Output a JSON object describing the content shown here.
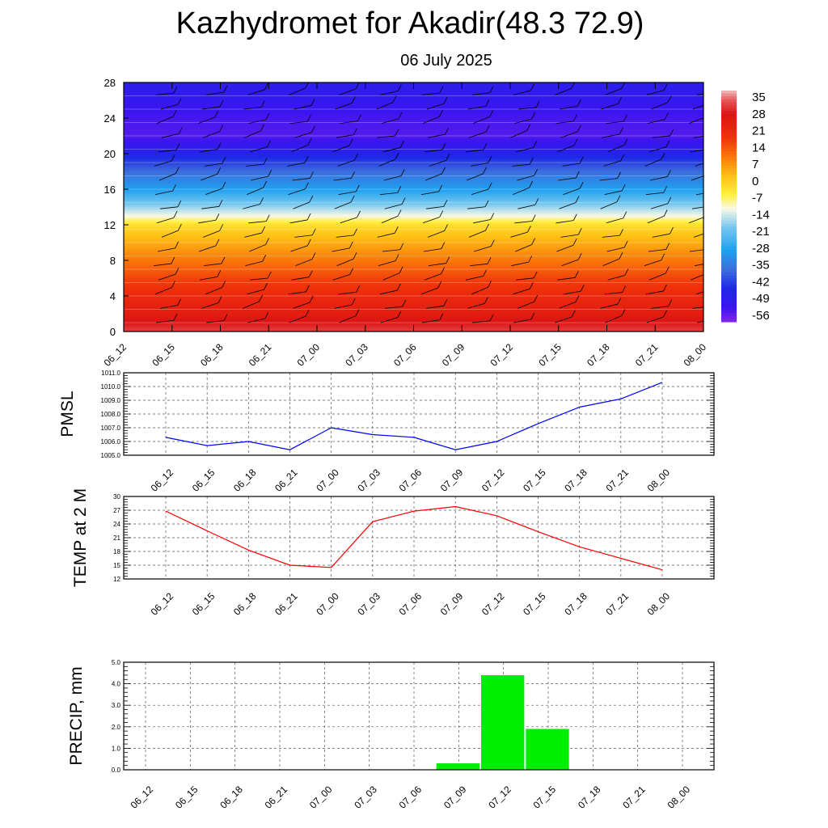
{
  "header": {
    "title": "Kazhydromet for Akadir(48.3 72.9)",
    "subtitle": "06 July 2025"
  },
  "chart_data": [
    {
      "type": "heatmap",
      "title": "",
      "time_labels": [
        "06_12",
        "06_15",
        "06_18",
        "06_21",
        "07_00",
        "07_03",
        "07_06",
        "07_09",
        "07_12",
        "07_15",
        "07_18",
        "07_21",
        "08_00"
      ],
      "ylim": [
        0,
        28
      ],
      "yticks": [
        "0",
        "4",
        "8",
        "12",
        "16",
        "20",
        "24",
        "28"
      ],
      "colorbar_labels": [
        "35",
        "28",
        "21",
        "14",
        "7",
        "0",
        "-7",
        "-14",
        "-21",
        "-28",
        "-35",
        "-42",
        "-49",
        "-56"
      ],
      "colorbar_range": [
        -60,
        38
      ],
      "temperature_profile_by_height": [
        {
          "h": 0,
          "t": 32
        },
        {
          "h": 2,
          "t": 25
        },
        {
          "h": 4,
          "t": 21
        },
        {
          "h": 6,
          "t": 16
        },
        {
          "h": 8,
          "t": 10
        },
        {
          "h": 10,
          "t": 4
        },
        {
          "h": 12,
          "t": -3
        },
        {
          "h": 13,
          "t": -12
        },
        {
          "h": 14,
          "t": -18
        },
        {
          "h": 16,
          "t": -30
        },
        {
          "h": 18,
          "t": -38
        },
        {
          "h": 20,
          "t": -48
        },
        {
          "h": 22,
          "t": -56
        },
        {
          "h": 24,
          "t": -55
        },
        {
          "h": 26,
          "t": -52
        },
        {
          "h": 28,
          "t": -50
        }
      ],
      "overlay": "wind barbs"
    },
    {
      "type": "line",
      "ylabel": "PMSL",
      "x": [
        "06_12",
        "06_15",
        "06_18",
        "06_21",
        "07_00",
        "07_03",
        "07_06",
        "07_09",
        "07_12",
        "07_15",
        "07_18",
        "07_21",
        "08_00"
      ],
      "values": [
        1006.3,
        1005.7,
        1006.0,
        1005.4,
        1007.0,
        1006.5,
        1006.3,
        1005.4,
        1006.0,
        1007.3,
        1008.5,
        1009.1,
        1010.3
      ],
      "ylim": [
        1005.0,
        1011.0
      ],
      "yticks": [
        "1005.0",
        "1006.0",
        "1007.0",
        "1008.0",
        "1009.0",
        "1010.0",
        "1011.0"
      ],
      "color": "#0000ff",
      "grid": true
    },
    {
      "type": "line",
      "ylabel": "TEMP at 2 M",
      "x": [
        "06_12",
        "06_15",
        "06_18",
        "06_21",
        "07_00",
        "07_03",
        "07_06",
        "07_09",
        "07_12",
        "07_15",
        "07_18",
        "07_21",
        "08_00"
      ],
      "values": [
        26.8,
        22.5,
        18.3,
        15.0,
        14.5,
        24.5,
        26.8,
        27.8,
        25.8,
        22.3,
        19.0,
        16.5,
        14.0
      ],
      "ylim": [
        12,
        30
      ],
      "yticks": [
        "12",
        "15",
        "18",
        "21",
        "24",
        "27",
        "30"
      ],
      "color": "#ff0000",
      "grid": true
    },
    {
      "type": "bar",
      "ylabel": "PRECIP, mm",
      "categories": [
        "06_12",
        "06_15",
        "06_18",
        "06_21",
        "07_00",
        "07_03",
        "07_06",
        "07_09",
        "07_12",
        "07_15",
        "07_18",
        "07_21",
        "08_00"
      ],
      "values": [
        0,
        0,
        0,
        0,
        0,
        0,
        0,
        0.3,
        4.4,
        1.9,
        0,
        0,
        0
      ],
      "ylim": [
        0,
        5.0
      ],
      "yticks": [
        "0.0",
        "1.0",
        "2.0",
        "3.0",
        "4.0",
        "5.0"
      ],
      "color": "#00ee00",
      "grid": true
    }
  ]
}
